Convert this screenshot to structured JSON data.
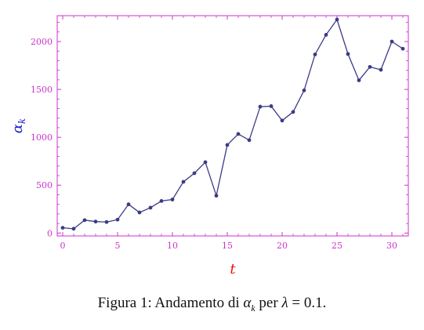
{
  "colors": {
    "frame": "#cc33cc",
    "tick_labels": "#cc33cc",
    "series": "#3b3b86",
    "ylabel": "#2222cc",
    "xlabel": "#ee1111"
  },
  "chart_data": {
    "type": "line",
    "xlabel": "t",
    "ylabel_base": "α",
    "ylabel_sub": "k",
    "xlim": [
      -0.5,
      31.5
    ],
    "ylim": [
      -30,
      2270
    ],
    "x_ticks": [
      0,
      5,
      10,
      15,
      20,
      25,
      30
    ],
    "y_ticks": [
      0,
      500,
      1000,
      1500,
      2000
    ],
    "grid": false,
    "series": [
      {
        "x": [
          0,
          1,
          2,
          3,
          4,
          5,
          6,
          7,
          8,
          9,
          10,
          11,
          12,
          13,
          14,
          15,
          16,
          17,
          18,
          19,
          20,
          21,
          22,
          23,
          24,
          25,
          26,
          27,
          28,
          29,
          30,
          31
        ],
        "values": [
          55,
          45,
          135,
          120,
          115,
          140,
          300,
          215,
          265,
          335,
          350,
          535,
          625,
          740,
          390,
          920,
          1035,
          970,
          1320,
          1325,
          1175,
          1265,
          1490,
          1865,
          2070,
          2230,
          1870,
          1595,
          1735,
          1705,
          2000,
          1925
        ]
      }
    ]
  },
  "caption": {
    "prefix": "Figura 1: Andamento di ",
    "alpha": "α",
    "alpha_sub": "k",
    "per": " per ",
    "lambda": "λ",
    "equals_value": " = 0.1."
  }
}
